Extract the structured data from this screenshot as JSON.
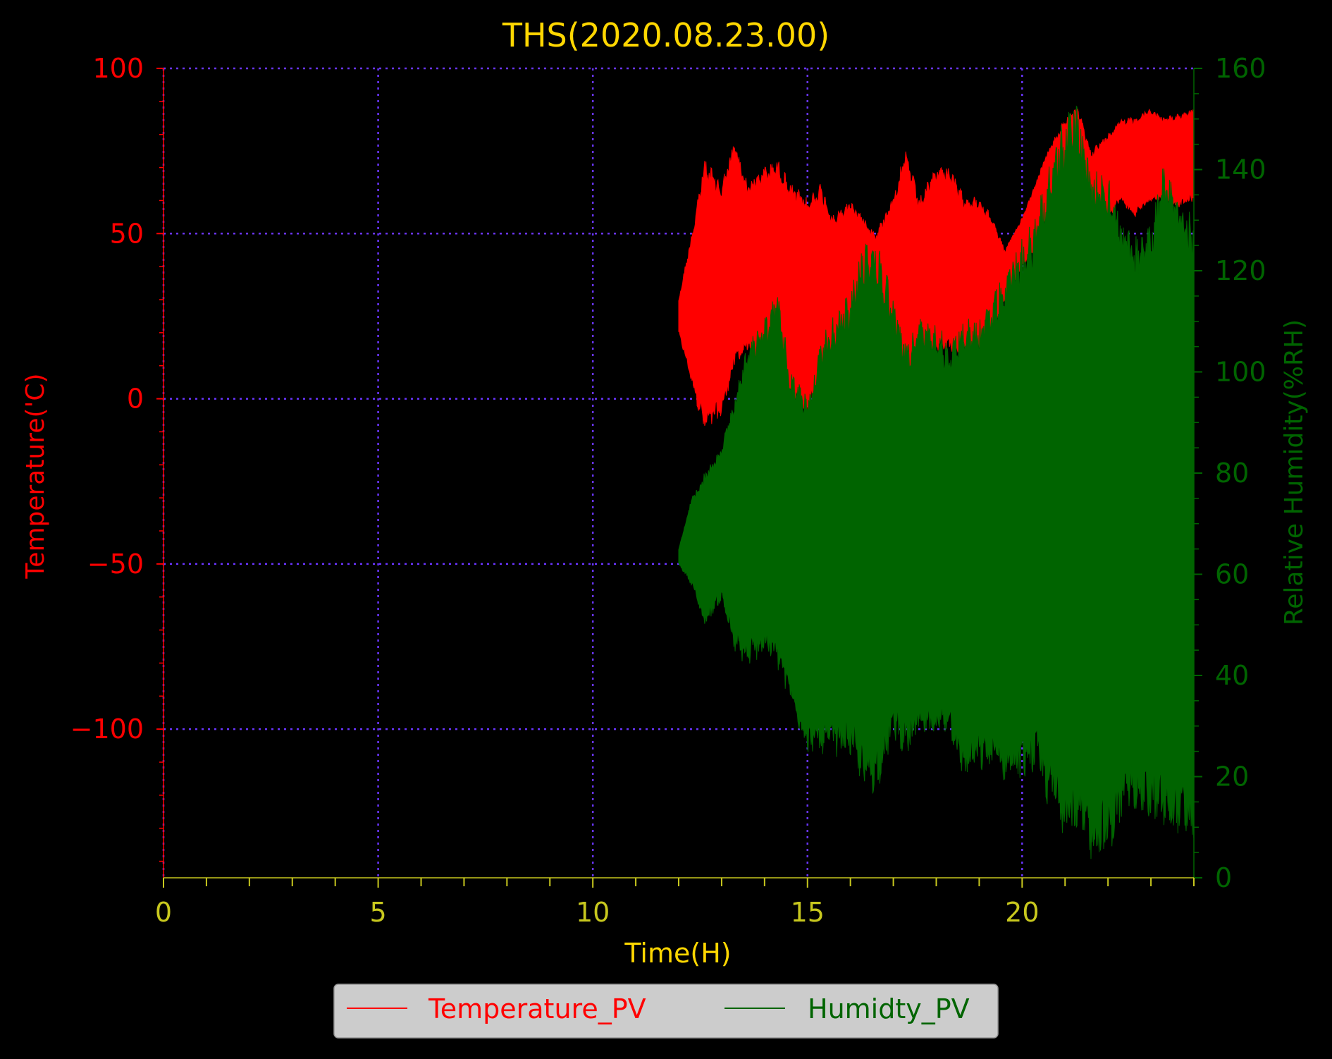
{
  "colors": {
    "background": "#000000",
    "temperature": "#ff0000",
    "humidity": "#006400",
    "title": "#ffd700",
    "time_axis": "#c8c81e",
    "grid": "#6a35ff",
    "legend_bg": "#cccccc"
  },
  "chart_data": {
    "type": "line",
    "title": "THS(2020.08.23.00)",
    "xlabel": "Time(H)",
    "ylabel_left": "Temperature('C)",
    "ylabel_right": "Relative Humidity(%RH)",
    "xlim": [
      0,
      24
    ],
    "ylim_left": [
      -145,
      100
    ],
    "ylim_right": [
      0,
      160
    ],
    "x_ticks": [
      0,
      5,
      10,
      15,
      20
    ],
    "y_left_ticks": [
      100,
      50,
      0,
      -50,
      -100
    ],
    "y_right_ticks": [
      0,
      20,
      40,
      60,
      80,
      100,
      120,
      140,
      160
    ],
    "grid": true,
    "grid_style": "dotted",
    "legend_position": "bottom-center",
    "series": [
      {
        "name": "Temperature_PV",
        "axis": "left",
        "style": "dense oscillating band",
        "x": [
          12.0,
          12.3,
          12.6,
          13.0,
          13.3,
          13.6,
          14.0,
          14.3,
          14.6,
          15.0,
          15.3,
          15.6,
          16.0,
          16.3,
          16.6,
          17.0,
          17.3,
          17.6,
          18.0,
          18.3,
          18.6,
          19.0,
          19.3,
          19.6,
          20.0,
          20.3,
          20.6,
          21.0,
          21.3,
          21.6,
          22.0,
          22.3,
          22.6,
          23.0,
          23.3,
          23.6,
          24.0
        ],
        "upper": [
          30,
          50,
          72,
          65,
          78,
          65,
          70,
          72,
          65,
          60,
          65,
          55,
          60,
          55,
          50,
          62,
          75,
          60,
          70,
          70,
          62,
          60,
          55,
          45,
          55,
          65,
          75,
          85,
          88,
          75,
          80,
          85,
          85,
          88,
          85,
          86,
          88
        ],
        "lower": [
          20,
          5,
          -10,
          -5,
          10,
          15,
          5,
          5,
          0,
          -5,
          5,
          10,
          15,
          20,
          15,
          10,
          5,
          10,
          15,
          15,
          12,
          15,
          20,
          30,
          40,
          45,
          55,
          50,
          55,
          45,
          55,
          60,
          55,
          60,
          60,
          58,
          60
        ]
      },
      {
        "name": "Humidty_PV",
        "axis": "right",
        "style": "dense oscillating band",
        "x": [
          12.0,
          12.3,
          12.6,
          13.0,
          13.3,
          13.6,
          14.0,
          14.3,
          14.6,
          15.0,
          15.3,
          15.6,
          16.0,
          16.3,
          16.6,
          17.0,
          17.3,
          17.6,
          18.0,
          18.3,
          18.6,
          19.0,
          19.3,
          19.6,
          20.0,
          20.3,
          20.6,
          21.0,
          21.3,
          21.6,
          22.0,
          22.3,
          22.6,
          23.0,
          23.3,
          23.6,
          24.0
        ],
        "upper": [
          65,
          75,
          80,
          85,
          95,
          105,
          110,
          115,
          100,
          95,
          105,
          110,
          115,
          125,
          125,
          115,
          105,
          110,
          110,
          105,
          110,
          110,
          115,
          120,
          125,
          130,
          140,
          150,
          153,
          140,
          140,
          130,
          125,
          130,
          140,
          135,
          130
        ],
        "lower": [
          62,
          58,
          50,
          55,
          45,
          42,
          45,
          42,
          35,
          25,
          25,
          25,
          25,
          18,
          18,
          28,
          25,
          28,
          28,
          30,
          20,
          22,
          22,
          20,
          20,
          22,
          15,
          10,
          8,
          5,
          5,
          12,
          15,
          12,
          10,
          10,
          8
        ]
      }
    ]
  }
}
